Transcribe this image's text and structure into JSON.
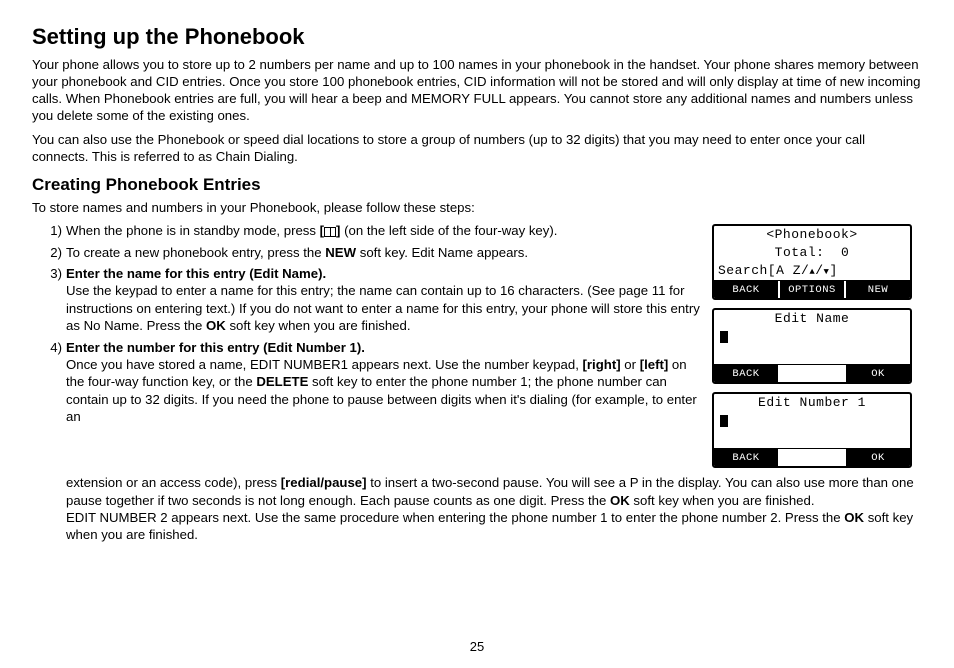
{
  "page_number": "25",
  "h1": "Setting up the Phonebook",
  "para1": "Your phone allows you to store up to 2 numbers per name and up to 100 names in your phonebook in the handset. Your phone shares memory between your phonebook and CID entries. Once you store 100 phonebook entries, CID information will not be stored and will only display at time of new incoming calls. When Phonebook entries are full, you will hear a beep and MEMORY FULL appears. You cannot store any additional names and numbers unless you delete some of the existing ones.",
  "para2": "You can also use the Phonebook or speed dial locations to store a group of numbers (up to 32 digits) that you may need to enter once your call connects. This is referred to as Chain Dialing.",
  "h2": "Creating Phonebook Entries",
  "intro": "To store names and numbers in your Phonebook, please follow these steps:",
  "step1_n": "1)",
  "step1_a": "When the phone is in standby mode, press ",
  "step1_b": "[",
  "step1_c": "]",
  "step1_d": " (on the left side of the four-way key).",
  "step2_n": "2)",
  "step2_a": "To create a new phonebook entry, press the ",
  "step2_b": "NEW",
  "step2_c": " soft key. Edit Name appears.",
  "step3_n": "3)",
  "step3_title": "Enter the name for this entry (Edit Name).",
  "step3_body_a": "Use the keypad to enter a name for this entry; the name can contain up to 16 characters. (See page 11 for instructions on entering text.) If you do not want to enter a name for this entry, your phone will store this entry as No Name. Press the ",
  "step3_body_b": "OK",
  "step3_body_c": " soft key when you are finished.",
  "step4_n": "4)",
  "step4_title": "Enter the number for this entry (Edit Number 1).",
  "step4_body_a": "Once you have stored a name, EDIT NUMBER1 appears next. Use the number keypad, ",
  "step4_right": "[right]",
  "step4_or": " or ",
  "step4_left": "[left]",
  "step4_body_b": " on the four-way function key, or the ",
  "step4_delete": "DELETE",
  "step4_body_c": " soft key to enter the phone number 1; the phone number can contain up to 32 digits. If you need the phone to pause between digits when it's dialing (for example, to enter an",
  "step4_wrap_a": "extension or an access code), press ",
  "step4_redial": "[redial/pause]",
  "step4_wrap_b": " to insert a two-second pause. You will see a P in the display. You can also use more than one pause together if two seconds is not long enough. Each pause counts as one digit. Press the ",
  "step4_ok": "OK",
  "step4_wrap_c": " soft key when you are finished.",
  "step4_wrap_d": "EDIT NUMBER 2 appears next. Use the same procedure when entering the phone number 1 to enter the phone number 2. Press the ",
  "step4_ok2": "OK",
  "step4_wrap_e": " soft key when you are finished.",
  "lcd1": {
    "line1": "<Phonebook>",
    "line2": "Total:  0",
    "line3_a": "Search[A Z/",
    "line3_b": "/",
    "line3_c": "]",
    "sk1": "BACK",
    "sk2": "OPTIONS",
    "sk3": "NEW"
  },
  "lcd2": {
    "line1": "Edit Name",
    "sk1": "BACK",
    "sk3": "OK"
  },
  "lcd3": {
    "line1": "Edit Number 1",
    "sk1": "BACK",
    "sk3": "OK"
  }
}
